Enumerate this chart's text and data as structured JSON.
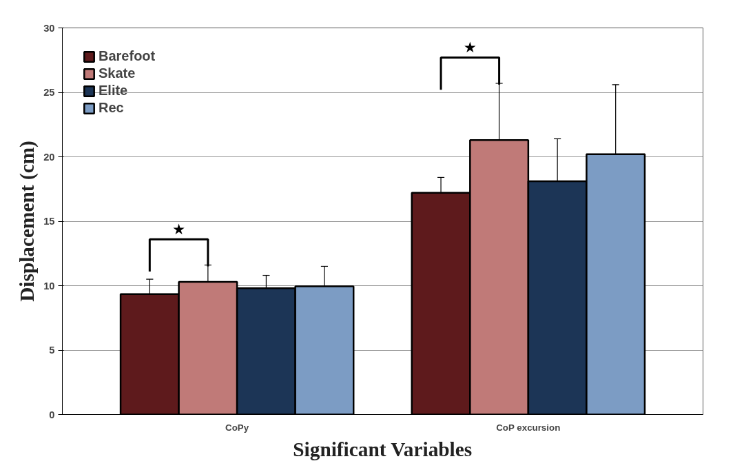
{
  "chart_data": {
    "type": "bar",
    "xlabel": "Significant Variables",
    "ylabel": "Displacement (cm)",
    "categories": [
      "CoPy",
      "CoP excursion"
    ],
    "series": [
      {
        "name": "Barefoot",
        "color": "#5e1a1c",
        "values": [
          9.35,
          17.2
        ],
        "errors": [
          [
            9.35,
            10.5
          ],
          [
            17.2,
            18.4
          ]
        ]
      },
      {
        "name": "Skate",
        "color": "#c07a78",
        "values": [
          10.3,
          21.3
        ],
        "errors": [
          [
            10.3,
            11.6
          ],
          [
            21.3,
            25.7
          ]
        ]
      },
      {
        "name": "Elite",
        "color": "#1c3556",
        "values": [
          9.8,
          18.1
        ],
        "errors": [
          [
            9.8,
            10.8
          ],
          [
            18.1,
            21.4
          ]
        ]
      },
      {
        "name": "Rec",
        "color": "#7c9cc4",
        "values": [
          9.95,
          20.2
        ],
        "errors": [
          [
            9.95,
            11.5
          ],
          [
            20.2,
            25.6
          ]
        ]
      }
    ],
    "ylim": [
      0,
      30
    ],
    "yticks": [
      0,
      5,
      10,
      15,
      20,
      25,
      30
    ],
    "grid": "y",
    "legend": "top left",
    "annotations": [
      "★",
      "★"
    ]
  }
}
